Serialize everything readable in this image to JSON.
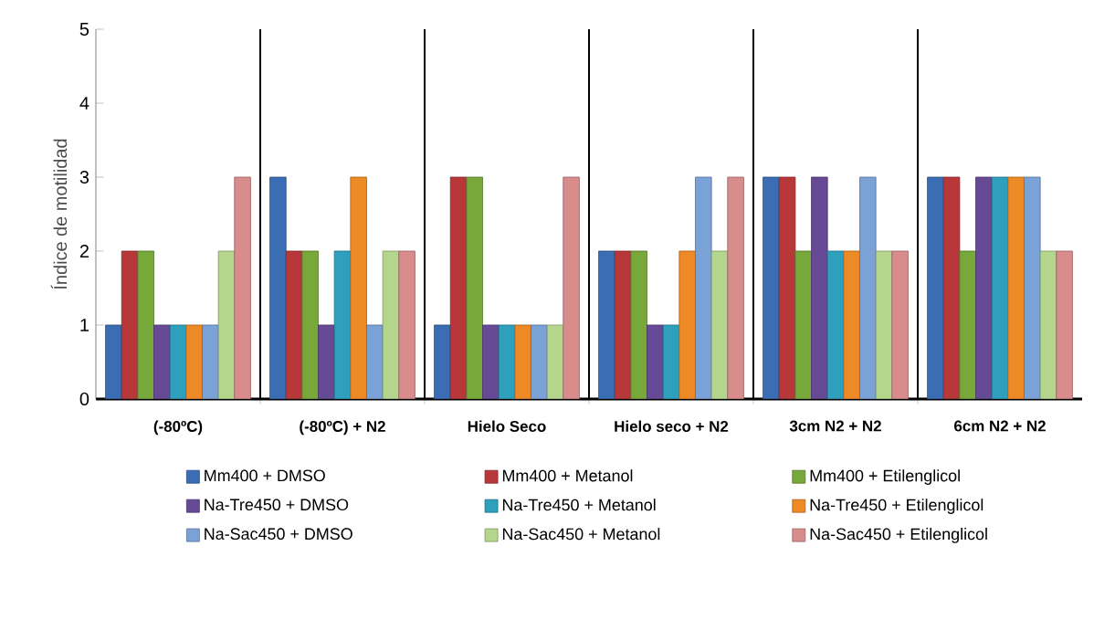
{
  "chart_data": {
    "type": "bar",
    "ylabel": "Índice de motilidad",
    "categories": [
      "(-80ºC)",
      "(-80ºC) + N2",
      "Hielo Seco",
      "Hielo seco  + N2",
      "3cm N2 + N2",
      "6cm N2 + N2"
    ],
    "ylim": [
      0,
      5
    ],
    "yticks": [
      0,
      1,
      2,
      3,
      4,
      5
    ],
    "grid": "x",
    "legend": "bottom",
    "series": [
      {
        "name": "Mm400 + DMSO",
        "color": "#3a6db3",
        "values": [
          1,
          3,
          1,
          2,
          3,
          3
        ]
      },
      {
        "name": "Mm400 + Metanol",
        "color": "#b8383a",
        "values": [
          2,
          2,
          3,
          2,
          3,
          3
        ]
      },
      {
        "name": "Mm400 + Etilenglicol",
        "color": "#78a83a",
        "values": [
          2,
          2,
          3,
          2,
          2,
          2
        ]
      },
      {
        "name": "Na-Tre450 + DMSO",
        "color": "#664a96",
        "values": [
          1,
          1,
          1,
          1,
          3,
          3
        ]
      },
      {
        "name": "Na-Tre450 + Metanol",
        "color": "#2ea0bd",
        "values": [
          1,
          2,
          1,
          1,
          2,
          3
        ]
      },
      {
        "name": "Na-Tre450 + Etilenglicol",
        "color": "#ee8a26",
        "values": [
          1,
          3,
          1,
          2,
          2,
          3
        ]
      },
      {
        "name": "Na-Sac450 + DMSO",
        "color": "#7ba2d6",
        "values": [
          1,
          1,
          1,
          3,
          3,
          3
        ]
      },
      {
        "name": "Na-Sac450 + Metanol",
        "color": "#b4d68c",
        "values": [
          2,
          2,
          1,
          2,
          2,
          2
        ]
      },
      {
        "name": "Na-Sac450 + Etilenglicol",
        "color": "#d88c8c",
        "values": [
          3,
          2,
          3,
          3,
          2,
          2
        ]
      }
    ]
  }
}
